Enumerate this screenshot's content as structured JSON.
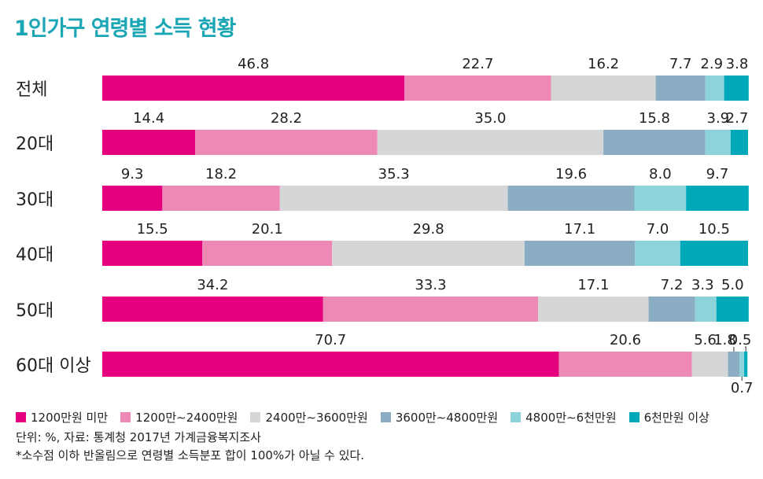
{
  "title": "1인가구 연령별 소득 현황",
  "colors": {
    "title": "#1aa6b4"
  },
  "chart_data": {
    "type": "bar",
    "orientation": "horizontal",
    "stacked": true,
    "title": "1인가구 연령별 소득 현황",
    "xlim": [
      0,
      100
    ],
    "grid": false,
    "legend_position": "bottom",
    "categories": [
      "전체",
      "20대",
      "30대",
      "40대",
      "50대",
      "60대 이상"
    ],
    "series": [
      {
        "name": "1200만원 미만",
        "color": "#e4007f",
        "values": [
          46.8,
          14.4,
          9.3,
          15.5,
          34.2,
          70.7
        ],
        "labels": [
          "46.8",
          "14.4",
          "9.3",
          "15.5",
          "34.2",
          "70.7"
        ]
      },
      {
        "name": "1200만∼2400만원",
        "color": "#ee88b4",
        "values": [
          22.7,
          28.2,
          18.2,
          20.1,
          33.3,
          20.6
        ],
        "labels": [
          "22.7",
          "28.2",
          "18.2",
          "20.1",
          "33.3",
          "20.6"
        ]
      },
      {
        "name": "2400만∼3600만원",
        "color": "#d5d6d8",
        "values": [
          16.2,
          35.0,
          35.3,
          29.8,
          17.1,
          5.6
        ],
        "labels": [
          "16.2",
          "35.0",
          "35.3",
          "29.8",
          "17.1",
          "5.6"
        ]
      },
      {
        "name": "3600만∼4800만원",
        "color": "#8badc4",
        "values": [
          7.7,
          15.8,
          19.6,
          17.1,
          7.2,
          1.8
        ],
        "labels": [
          "7.7",
          "15.8",
          "19.6",
          "17.1",
          "7.2",
          "1.8"
        ]
      },
      {
        "name": "4800만∼6천만원",
        "color": "#8dd3d9",
        "values": [
          2.9,
          3.9,
          8.0,
          7.0,
          3.3,
          0.7
        ],
        "labels": [
          "2.9",
          "3.9",
          "8.0",
          "7.0",
          "3.3",
          "0.7"
        ]
      },
      {
        "name": "6천만원 이상",
        "color": "#00a9b9",
        "values": [
          3.8,
          2.7,
          9.7,
          10.5,
          5.0,
          0.5
        ],
        "labels": [
          "3.8",
          "2.7",
          "9.7",
          "10.5",
          "5.0",
          "0.5"
        ]
      }
    ]
  },
  "notes": {
    "unit_source": "단위: %, 자료: 통계청 2017년 가계금융복지조사",
    "footnote": "*소수점 이하 반올림으로 연령별 소득분포 합이 100%가 아닐 수 있다."
  }
}
